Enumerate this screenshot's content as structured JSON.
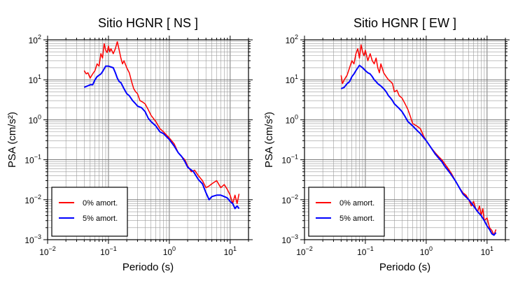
{
  "chart_data": [
    {
      "type": "line",
      "title": "Sitio HGNR [ NS ]",
      "xlabel": "Periodo (s)",
      "ylabel": "PSA (cm/s²)",
      "xscale": "log",
      "yscale": "log",
      "xlim": [
        0.01,
        20
      ],
      "ylim": [
        0.001,
        100
      ],
      "grid": true,
      "legend_position": "bottom-left",
      "x_ticks": [
        {
          "value": 0.01,
          "base": "10",
          "exp": "−2"
        },
        {
          "value": 0.1,
          "base": "10",
          "exp": "−1"
        },
        {
          "value": 1,
          "base": "10",
          "exp": "0"
        },
        {
          "value": 10,
          "base": "10",
          "exp": "1"
        }
      ],
      "y_ticks": [
        {
          "value": 0.001,
          "base": "10",
          "exp": "−3"
        },
        {
          "value": 0.01,
          "base": "10",
          "exp": "−2"
        },
        {
          "value": 0.1,
          "base": "10",
          "exp": "−1"
        },
        {
          "value": 1,
          "base": "10",
          "exp": "0"
        },
        {
          "value": 10,
          "base": "10",
          "exp": "1"
        },
        {
          "value": 100,
          "base": "10",
          "exp": "2"
        }
      ],
      "series": [
        {
          "name": "0% amort.",
          "color": "#ff0000",
          "points": [
            [
              0.04,
              17
            ],
            [
              0.043,
              14
            ],
            [
              0.046,
              15
            ],
            [
              0.05,
              11
            ],
            [
              0.055,
              14
            ],
            [
              0.06,
              17
            ],
            [
              0.065,
              25
            ],
            [
              0.07,
              22
            ],
            [
              0.075,
              45
            ],
            [
              0.08,
              35
            ],
            [
              0.085,
              80
            ],
            [
              0.09,
              55
            ],
            [
              0.095,
              48
            ],
            [
              0.1,
              70
            ],
            [
              0.105,
              50
            ],
            [
              0.11,
              60
            ],
            [
              0.12,
              45
            ],
            [
              0.13,
              60
            ],
            [
              0.14,
              90
            ],
            [
              0.15,
              55
            ],
            [
              0.16,
              35
            ],
            [
              0.17,
              25
            ],
            [
              0.18,
              30
            ],
            [
              0.2,
              20
            ],
            [
              0.22,
              15
            ],
            [
              0.24,
              9
            ],
            [
              0.26,
              6
            ],
            [
              0.28,
              5
            ],
            [
              0.3,
              4.5
            ],
            [
              0.33,
              3
            ],
            [
              0.36,
              2.8
            ],
            [
              0.4,
              2.5
            ],
            [
              0.45,
              1.8
            ],
            [
              0.5,
              1.3
            ],
            [
              0.6,
              0.9
            ],
            [
              0.7,
              0.6
            ],
            [
              0.8,
              0.5
            ],
            [
              1,
              0.35
            ],
            [
              1.2,
              0.25
            ],
            [
              1.4,
              0.15
            ],
            [
              1.6,
              0.12
            ],
            [
              1.8,
              0.1
            ],
            [
              2,
              0.07
            ],
            [
              2.3,
              0.05
            ],
            [
              2.6,
              0.055
            ],
            [
              3,
              0.04
            ],
            [
              3.5,
              0.03
            ],
            [
              4,
              0.02
            ],
            [
              4.5,
              0.022
            ],
            [
              5,
              0.025
            ],
            [
              6,
              0.03
            ],
            [
              7,
              0.02
            ],
            [
              8,
              0.024
            ],
            [
              9,
              0.018
            ],
            [
              10,
              0.013
            ],
            [
              11,
              0.008
            ],
            [
              12,
              0.013
            ],
            [
              13,
              0.008
            ],
            [
              14,
              0.014
            ]
          ]
        },
        {
          "name": "5% amort.",
          "color": "#0000ff",
          "points": [
            [
              0.04,
              6.5
            ],
            [
              0.045,
              7
            ],
            [
              0.05,
              7.5
            ],
            [
              0.055,
              7.5
            ],
            [
              0.06,
              10
            ],
            [
              0.065,
              12
            ],
            [
              0.07,
              13
            ],
            [
              0.075,
              14
            ],
            [
              0.08,
              16
            ],
            [
              0.09,
              22
            ],
            [
              0.1,
              22
            ],
            [
              0.11,
              21
            ],
            [
              0.12,
              20
            ],
            [
              0.13,
              15
            ],
            [
              0.14,
              11
            ],
            [
              0.15,
              9
            ],
            [
              0.16,
              8.5
            ],
            [
              0.18,
              6
            ],
            [
              0.2,
              4.5
            ],
            [
              0.22,
              4
            ],
            [
              0.25,
              3
            ],
            [
              0.28,
              2.5
            ],
            [
              0.3,
              2.2
            ],
            [
              0.35,
              2
            ],
            [
              0.4,
              1.6
            ],
            [
              0.45,
              1.1
            ],
            [
              0.5,
              0.9
            ],
            [
              0.6,
              0.7
            ],
            [
              0.7,
              0.5
            ],
            [
              0.8,
              0.45
            ],
            [
              1,
              0.32
            ],
            [
              1.2,
              0.22
            ],
            [
              1.4,
              0.15
            ],
            [
              1.6,
              0.12
            ],
            [
              1.8,
              0.09
            ],
            [
              2,
              0.065
            ],
            [
              2.5,
              0.05
            ],
            [
              3,
              0.032
            ],
            [
              3.5,
              0.025
            ],
            [
              4,
              0.015
            ],
            [
              4.5,
              0.01
            ],
            [
              5,
              0.012
            ],
            [
              6,
              0.013
            ],
            [
              7,
              0.013
            ],
            [
              8,
              0.012
            ],
            [
              9,
              0.011
            ],
            [
              10,
              0.009
            ],
            [
              11,
              0.008
            ],
            [
              12,
              0.006
            ],
            [
              13,
              0.007
            ],
            [
              14,
              0.006
            ]
          ]
        }
      ]
    },
    {
      "type": "line",
      "title": "Sitio HGNR [ EW ]",
      "xlabel": "Periodo (s)",
      "ylabel": "PSA (cm/s²)",
      "xscale": "log",
      "yscale": "log",
      "xlim": [
        0.01,
        20
      ],
      "ylim": [
        0.001,
        100
      ],
      "grid": true,
      "legend_position": "bottom-left",
      "x_ticks": [
        {
          "value": 0.01,
          "base": "10",
          "exp": "−2"
        },
        {
          "value": 0.1,
          "base": "10",
          "exp": "−1"
        },
        {
          "value": 1,
          "base": "10",
          "exp": "0"
        },
        {
          "value": 10,
          "base": "10",
          "exp": "1"
        }
      ],
      "y_ticks": [
        {
          "value": 0.001,
          "base": "10",
          "exp": "−3"
        },
        {
          "value": 0.01,
          "base": "10",
          "exp": "−2"
        },
        {
          "value": 0.1,
          "base": "10",
          "exp": "−1"
        },
        {
          "value": 1,
          "base": "10",
          "exp": "0"
        },
        {
          "value": 10,
          "base": "10",
          "exp": "1"
        },
        {
          "value": 100,
          "base": "10",
          "exp": "2"
        }
      ],
      "series": [
        {
          "name": "0% amort.",
          "color": "#ff0000",
          "points": [
            [
              0.04,
              13
            ],
            [
              0.042,
              8
            ],
            [
              0.045,
              10
            ],
            [
              0.05,
              13
            ],
            [
              0.055,
              20
            ],
            [
              0.06,
              30
            ],
            [
              0.065,
              25
            ],
            [
              0.07,
              45
            ],
            [
              0.075,
              60
            ],
            [
              0.08,
              35
            ],
            [
              0.085,
              75
            ],
            [
              0.09,
              50
            ],
            [
              0.095,
              40
            ],
            [
              0.1,
              55
            ],
            [
              0.11,
              30
            ],
            [
              0.12,
              45
            ],
            [
              0.13,
              30
            ],
            [
              0.14,
              25
            ],
            [
              0.15,
              35
            ],
            [
              0.16,
              20
            ],
            [
              0.17,
              15
            ],
            [
              0.18,
              25
            ],
            [
              0.2,
              15
            ],
            [
              0.22,
              12
            ],
            [
              0.24,
              10
            ],
            [
              0.26,
              9
            ],
            [
              0.28,
              8
            ],
            [
              0.3,
              5
            ],
            [
              0.33,
              5.5
            ],
            [
              0.36,
              4
            ],
            [
              0.4,
              3.5
            ],
            [
              0.45,
              2.5
            ],
            [
              0.5,
              1.8
            ],
            [
              0.55,
              1.2
            ],
            [
              0.6,
              0.8
            ],
            [
              0.7,
              0.7
            ],
            [
              0.8,
              0.6
            ],
            [
              0.9,
              0.4
            ],
            [
              1,
              0.3
            ],
            [
              1.2,
              0.2
            ],
            [
              1.4,
              0.15
            ],
            [
              1.6,
              0.12
            ],
            [
              1.8,
              0.1
            ],
            [
              2,
              0.08
            ],
            [
              2.3,
              0.06
            ],
            [
              2.6,
              0.045
            ],
            [
              3,
              0.03
            ],
            [
              3.5,
              0.02
            ],
            [
              4,
              0.015
            ],
            [
              4.5,
              0.013
            ],
            [
              5,
              0.01
            ],
            [
              5.5,
              0.007
            ],
            [
              6,
              0.009
            ],
            [
              6.5,
              0.006
            ],
            [
              7,
              0.005
            ],
            [
              7.5,
              0.007
            ],
            [
              8,
              0.004
            ],
            [
              8.5,
              0.006
            ],
            [
              9,
              0.003
            ],
            [
              10,
              0.0035
            ],
            [
              11,
              0.002
            ],
            [
              12,
              0.0017
            ],
            [
              13,
              0.0013
            ],
            [
              14,
              0.0018
            ]
          ]
        },
        {
          "name": "5% amort.",
          "color": "#0000ff",
          "points": [
            [
              0.04,
              6
            ],
            [
              0.045,
              6.5
            ],
            [
              0.05,
              8
            ],
            [
              0.055,
              9
            ],
            [
              0.06,
              12
            ],
            [
              0.065,
              14
            ],
            [
              0.07,
              17
            ],
            [
              0.08,
              23
            ],
            [
              0.09,
              20
            ],
            [
              0.1,
              17
            ],
            [
              0.11,
              15
            ],
            [
              0.12,
              14
            ],
            [
              0.13,
              12
            ],
            [
              0.14,
              10
            ],
            [
              0.15,
              9
            ],
            [
              0.16,
              8
            ],
            [
              0.18,
              7
            ],
            [
              0.2,
              6
            ],
            [
              0.22,
              5
            ],
            [
              0.24,
              4
            ],
            [
              0.26,
              3.5
            ],
            [
              0.28,
              3
            ],
            [
              0.3,
              2.5
            ],
            [
              0.35,
              2
            ],
            [
              0.4,
              1.6
            ],
            [
              0.45,
              1.2
            ],
            [
              0.5,
              0.9
            ],
            [
              0.6,
              0.7
            ],
            [
              0.7,
              0.55
            ],
            [
              0.8,
              0.45
            ],
            [
              1,
              0.3
            ],
            [
              1.2,
              0.2
            ],
            [
              1.4,
              0.14
            ],
            [
              1.6,
              0.11
            ],
            [
              1.8,
              0.09
            ],
            [
              2,
              0.07
            ],
            [
              2.5,
              0.045
            ],
            [
              3,
              0.03
            ],
            [
              3.5,
              0.02
            ],
            [
              4,
              0.014
            ],
            [
              5,
              0.01
            ],
            [
              6,
              0.007
            ],
            [
              7,
              0.005
            ],
            [
              8,
              0.004
            ],
            [
              9,
              0.003
            ],
            [
              10,
              0.0022
            ],
            [
              11,
              0.0018
            ],
            [
              12,
              0.0014
            ],
            [
              13,
              0.0013
            ],
            [
              14,
              0.0015
            ]
          ]
        }
      ]
    }
  ]
}
